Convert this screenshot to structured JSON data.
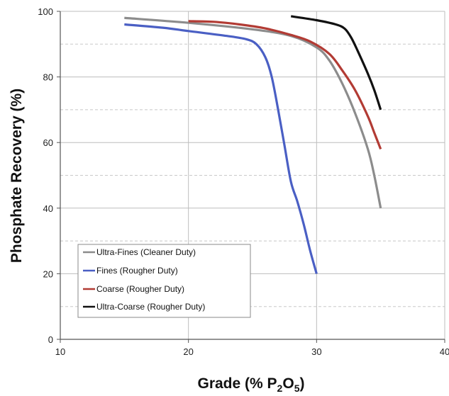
{
  "chart_data": {
    "type": "line",
    "xlabel_parts": [
      "Grade (% P",
      "2",
      "O",
      "5",
      ")"
    ],
    "ylabel": "Phosphate Recovery (%)",
    "xlim": [
      10,
      40
    ],
    "ylim": [
      0,
      100
    ],
    "xticks": [
      10,
      20,
      30,
      40
    ],
    "yticks": [
      0,
      20,
      40,
      60,
      80,
      100
    ],
    "grid": {
      "major_x": true,
      "major_y": true,
      "minor_horizontal_dashed": true
    },
    "legend_position": "bottom-left",
    "series": [
      {
        "name": "Ultra-Fines (Cleaner Duty)",
        "color": "#8c8c8c",
        "x": [
          15,
          20,
          25,
          28,
          30,
          31,
          32,
          33,
          34,
          34.5,
          35
        ],
        "y": [
          98,
          96.5,
          94.5,
          92.5,
          89,
          85,
          78,
          69,
          58,
          50,
          40
        ]
      },
      {
        "name": "Fines (Rougher Duty)",
        "color": "#4a5fc4",
        "x": [
          15,
          18,
          20,
          23,
          24.5,
          25.3,
          26,
          26.5,
          27,
          27.5,
          28,
          28.5,
          29,
          29.5,
          30
        ],
        "y": [
          96,
          95,
          94,
          92.5,
          91.5,
          90,
          86,
          80,
          70,
          59,
          48,
          42,
          35,
          27,
          20
        ]
      },
      {
        "name": "Coarse (Rougher Duty)",
        "color": "#b23b34",
        "x": [
          20,
          22,
          24,
          26,
          28,
          29.5,
          31,
          32,
          33,
          34,
          34.5,
          35
        ],
        "y": [
          97,
          96.8,
          96,
          94.8,
          92.8,
          90.8,
          87,
          82,
          76,
          68,
          63,
          58
        ]
      },
      {
        "name": "Ultra-Coarse (Rougher Duty)",
        "color": "#111111",
        "x": [
          28,
          30,
          31.5,
          32.2,
          32.7,
          33.2,
          34,
          34.5,
          35
        ],
        "y": [
          98.5,
          97.3,
          96,
          94.7,
          92,
          88,
          81,
          76,
          70
        ]
      }
    ]
  }
}
